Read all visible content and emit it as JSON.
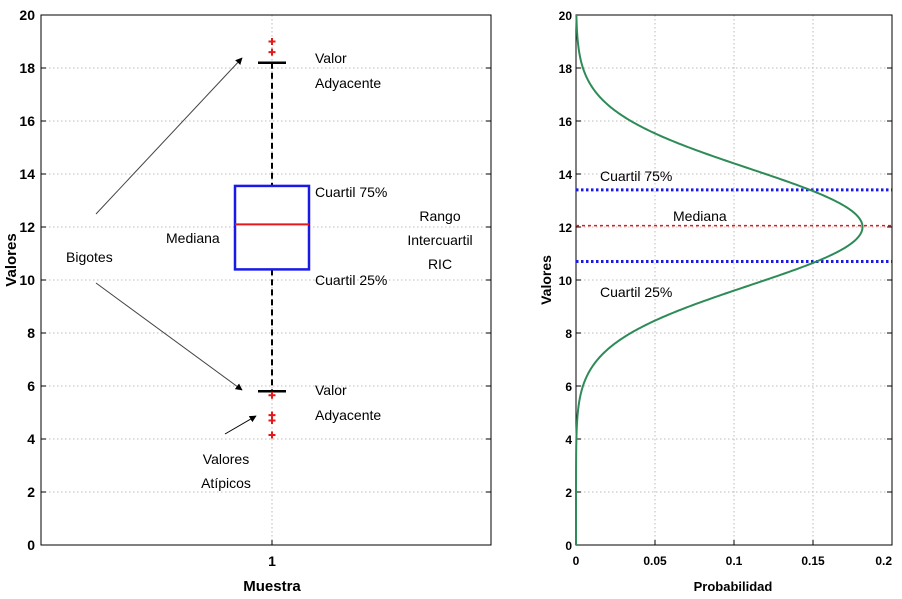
{
  "chart_data": [
    {
      "type": "boxplot",
      "xlabel": "Muestra",
      "ylabel": "Valores",
      "ylim": [
        0,
        20
      ],
      "yticks": [
        0,
        2,
        4,
        6,
        8,
        10,
        12,
        14,
        16,
        18,
        20
      ],
      "xtick": "1",
      "grid": true,
      "box": {
        "q1": 10.4,
        "median": 12.1,
        "q3": 13.55,
        "upper_adjacent": 18.2,
        "lower_adjacent": 5.8
      },
      "outliers_high": [
        19.0,
        18.6
      ],
      "outliers_low": [
        5.65,
        4.9,
        4.7,
        4.15
      ],
      "colors": {
        "box": "#1a1ae6",
        "median": "#e31a1a",
        "whisker": "#000000",
        "outlier": "#e31a1a",
        "arrow": "#444444"
      },
      "annotations": {
        "valor_upper": [
          "Valor",
          "Adyacente"
        ],
        "valor_lower": [
          "Valor",
          "Adyacente"
        ],
        "cuartil75": "Cuartil 75%",
        "cuartil25": "Cuartil 25%",
        "mediana": "Mediana",
        "bigotes": "Bigotes",
        "rango": [
          "Rango",
          "Intercuartil",
          "RIC"
        ],
        "atipicos": [
          "Valores",
          "Atípicos"
        ]
      }
    },
    {
      "type": "line",
      "xlabel": "Probabilidad",
      "ylabel": "Valores",
      "xlim": [
        0,
        0.2
      ],
      "ylim": [
        0,
        20
      ],
      "xticks": [
        "0",
        "0.05",
        "0.1",
        "0.15",
        "0.2"
      ],
      "yticks": [
        0,
        2,
        4,
        6,
        8,
        10,
        12,
        14,
        16,
        18,
        20
      ],
      "grid": true,
      "series": [
        {
          "kind": "normal_density",
          "mean": 12.0,
          "std": 2.2,
          "color": "#2e8b57"
        }
      ],
      "hlines": [
        {
          "y": 13.4,
          "label": "Cuartil 75%",
          "color": "#1a1ae6"
        },
        {
          "y": 12.05,
          "label": "Mediana",
          "color": "#e31a1a"
        },
        {
          "y": 10.7,
          "label": "Cuartil 25%",
          "color": "#1a1ae6"
        }
      ]
    }
  ]
}
